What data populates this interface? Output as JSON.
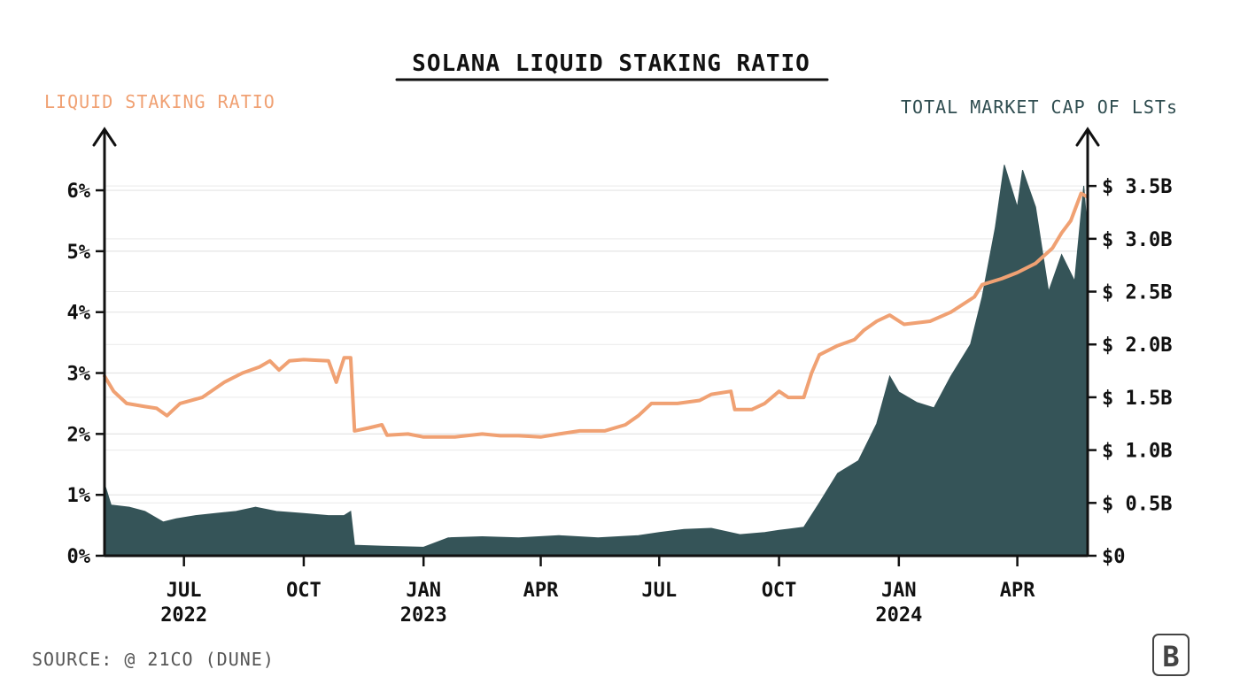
{
  "chart_data": {
    "type": "area+line",
    "title": "SOLANA LIQUID STAKING RATIO",
    "left_axis": {
      "label": "LIQUID STAKING RATIO",
      "ticks": [
        "0%",
        "1%",
        "2%",
        "3%",
        "4%",
        "5%",
        "6%"
      ],
      "tick_values": [
        0,
        1,
        2,
        3,
        4,
        5,
        6
      ],
      "range": [
        0,
        6.8
      ]
    },
    "right_axis": {
      "label": "TOTAL MARKET CAP OF LSTs",
      "ticks": [
        "$0",
        "$ 0.5B",
        "$ 1.0B",
        "$ 1.5B",
        "$ 2.0B",
        "$ 2.5B",
        "$ 3.0B",
        "$ 3.5B"
      ],
      "tick_values": [
        0,
        0.5,
        1.0,
        1.5,
        2.0,
        2.5,
        3.0,
        3.5
      ],
      "range": [
        0,
        3.92
      ]
    },
    "x_axis": {
      "range": [
        "2022-05-01",
        "2024-05-25"
      ],
      "ticks": [
        {
          "date": "2022-07-01",
          "label": "JUL",
          "year": "2022"
        },
        {
          "date": "2022-10-01",
          "label": "OCT",
          "year": ""
        },
        {
          "date": "2023-01-01",
          "label": "JAN",
          "year": "2023"
        },
        {
          "date": "2023-04-01",
          "label": "APR",
          "year": ""
        },
        {
          "date": "2023-07-01",
          "label": "JUL",
          "year": ""
        },
        {
          "date": "2023-10-01",
          "label": "OCT",
          "year": ""
        },
        {
          "date": "2024-01-01",
          "label": "JAN",
          "year": "2024"
        },
        {
          "date": "2024-04-01",
          "label": "APR",
          "year": ""
        }
      ]
    },
    "grid": true,
    "series": [
      {
        "name": "LIQUID STAKING RATIO",
        "axis": "left",
        "color": "#F0A173",
        "style": "line",
        "points": [
          [
            "2022-05-01",
            2.95
          ],
          [
            "2022-05-08",
            2.7
          ],
          [
            "2022-05-18",
            2.5
          ],
          [
            "2022-06-01",
            2.45
          ],
          [
            "2022-06-10",
            2.42
          ],
          [
            "2022-06-18",
            2.3
          ],
          [
            "2022-06-28",
            2.5
          ],
          [
            "2022-07-15",
            2.6
          ],
          [
            "2022-08-01",
            2.85
          ],
          [
            "2022-08-15",
            3.0
          ],
          [
            "2022-08-28",
            3.1
          ],
          [
            "2022-09-05",
            3.2
          ],
          [
            "2022-09-12",
            3.05
          ],
          [
            "2022-09-20",
            3.2
          ],
          [
            "2022-10-01",
            3.22
          ],
          [
            "2022-10-20",
            3.2
          ],
          [
            "2022-10-26",
            2.85
          ],
          [
            "2022-11-01",
            3.25
          ],
          [
            "2022-11-06",
            3.25
          ],
          [
            "2022-11-09",
            2.05
          ],
          [
            "2022-11-20",
            2.1
          ],
          [
            "2022-11-30",
            2.15
          ],
          [
            "2022-12-04",
            1.98
          ],
          [
            "2022-12-20",
            2.0
          ],
          [
            "2023-01-01",
            1.95
          ],
          [
            "2023-01-25",
            1.95
          ],
          [
            "2023-02-15",
            2.0
          ],
          [
            "2023-03-01",
            1.97
          ],
          [
            "2023-03-15",
            1.97
          ],
          [
            "2023-04-01",
            1.95
          ],
          [
            "2023-04-15",
            2.0
          ],
          [
            "2023-05-01",
            2.05
          ],
          [
            "2023-05-20",
            2.05
          ],
          [
            "2023-06-05",
            2.15
          ],
          [
            "2023-06-15",
            2.3
          ],
          [
            "2023-06-25",
            2.5
          ],
          [
            "2023-07-15",
            2.5
          ],
          [
            "2023-08-01",
            2.55
          ],
          [
            "2023-08-10",
            2.65
          ],
          [
            "2023-08-25",
            2.7
          ],
          [
            "2023-08-28",
            2.4
          ],
          [
            "2023-09-10",
            2.4
          ],
          [
            "2023-09-20",
            2.5
          ],
          [
            "2023-10-01",
            2.7
          ],
          [
            "2023-10-08",
            2.6
          ],
          [
            "2023-10-20",
            2.6
          ],
          [
            "2023-10-26",
            3.0
          ],
          [
            "2023-11-01",
            3.3
          ],
          [
            "2023-11-15",
            3.45
          ],
          [
            "2023-11-28",
            3.55
          ],
          [
            "2023-12-05",
            3.7
          ],
          [
            "2023-12-15",
            3.85
          ],
          [
            "2023-12-25",
            3.95
          ],
          [
            "2024-01-05",
            3.8
          ],
          [
            "2024-01-25",
            3.85
          ],
          [
            "2024-02-10",
            4.0
          ],
          [
            "2024-02-28",
            4.25
          ],
          [
            "2024-03-05",
            4.45
          ],
          [
            "2024-03-20",
            4.55
          ],
          [
            "2024-04-01",
            4.65
          ],
          [
            "2024-04-15",
            4.8
          ],
          [
            "2024-04-28",
            5.05
          ],
          [
            "2024-05-05",
            5.3
          ],
          [
            "2024-05-12",
            5.5
          ],
          [
            "2024-05-20",
            5.95
          ],
          [
            "2024-05-24",
            5.9
          ]
        ]
      },
      {
        "name": "TOTAL MARKET CAP OF LSTs",
        "axis": "right",
        "color": "#355458",
        "style": "area",
        "points": [
          [
            "2022-05-01",
            0.68
          ],
          [
            "2022-05-06",
            0.48
          ],
          [
            "2022-05-20",
            0.46
          ],
          [
            "2022-06-01",
            0.42
          ],
          [
            "2022-06-15",
            0.32
          ],
          [
            "2022-06-25",
            0.35
          ],
          [
            "2022-07-10",
            0.38
          ],
          [
            "2022-07-25",
            0.4
          ],
          [
            "2022-08-10",
            0.42
          ],
          [
            "2022-08-25",
            0.46
          ],
          [
            "2022-09-10",
            0.42
          ],
          [
            "2022-10-01",
            0.4
          ],
          [
            "2022-10-20",
            0.38
          ],
          [
            "2022-11-01",
            0.38
          ],
          [
            "2022-11-06",
            0.42
          ],
          [
            "2022-11-09",
            0.1
          ],
          [
            "2022-12-01",
            0.09
          ],
          [
            "2023-01-01",
            0.08
          ],
          [
            "2023-01-20",
            0.17
          ],
          [
            "2023-02-15",
            0.18
          ],
          [
            "2023-03-15",
            0.17
          ],
          [
            "2023-04-15",
            0.19
          ],
          [
            "2023-05-15",
            0.17
          ],
          [
            "2023-06-15",
            0.19
          ],
          [
            "2023-07-01",
            0.22
          ],
          [
            "2023-07-20",
            0.25
          ],
          [
            "2023-08-10",
            0.26
          ],
          [
            "2023-09-01",
            0.2
          ],
          [
            "2023-09-20",
            0.22
          ],
          [
            "2023-10-01",
            0.24
          ],
          [
            "2023-10-20",
            0.27
          ],
          [
            "2023-11-01",
            0.5
          ],
          [
            "2023-11-15",
            0.78
          ],
          [
            "2023-12-01",
            0.9
          ],
          [
            "2023-12-15",
            1.25
          ],
          [
            "2023-12-25",
            1.7
          ],
          [
            "2024-01-01",
            1.55
          ],
          [
            "2024-01-15",
            1.45
          ],
          [
            "2024-01-28",
            1.4
          ],
          [
            "2024-02-10",
            1.7
          ],
          [
            "2024-02-25",
            2.0
          ],
          [
            "2024-03-05",
            2.45
          ],
          [
            "2024-03-15",
            3.1
          ],
          [
            "2024-03-22",
            3.7
          ],
          [
            "2024-04-01",
            3.3
          ],
          [
            "2024-04-05",
            3.65
          ],
          [
            "2024-04-15",
            3.3
          ],
          [
            "2024-04-25",
            2.5
          ],
          [
            "2024-05-05",
            2.85
          ],
          [
            "2024-05-15",
            2.6
          ],
          [
            "2024-05-22",
            3.5
          ],
          [
            "2024-05-24",
            3.2
          ]
        ]
      }
    ]
  },
  "source": "SOURCE: @ 21CO (DUNE)",
  "logo_text": "B"
}
